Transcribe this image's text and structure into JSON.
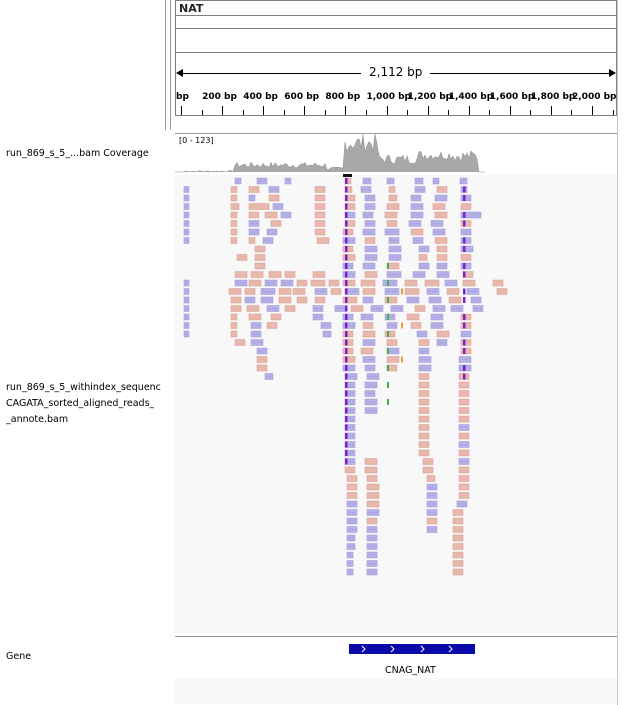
{
  "header": {
    "chrom": "NAT",
    "span_text": "2,112 bp",
    "ruler_ticks": [
      "bp",
      "200 bp",
      "400 bp",
      "600 bp",
      "800 bp",
      "1,000 bp",
      "1,200 bp",
      "1,400 bp",
      "1,600 bp",
      "1,800 bp",
      "2,000 bp"
    ]
  },
  "tracks": {
    "coverage_name": "run_869_s_5_...bam Coverage",
    "coverage_range": "[0 - 123]",
    "alignment_name_lines": [
      "run_869_s_5_withindex_sequenc",
      "CAGATA_sorted_aligned_reads_",
      "_annote.bam"
    ],
    "gene_name": "Gene"
  },
  "gene": {
    "label": "CNAG_NAT",
    "color": "#0a0aa8"
  },
  "colors": {
    "forward_read": "#e9b8ad",
    "reverse_read": "#b5b0e6",
    "coverage": "#a8a8a8",
    "insertion": "#7a1fd1",
    "mismatch_a": "#3cb44b",
    "mismatch_g": "#e6a23c"
  }
}
